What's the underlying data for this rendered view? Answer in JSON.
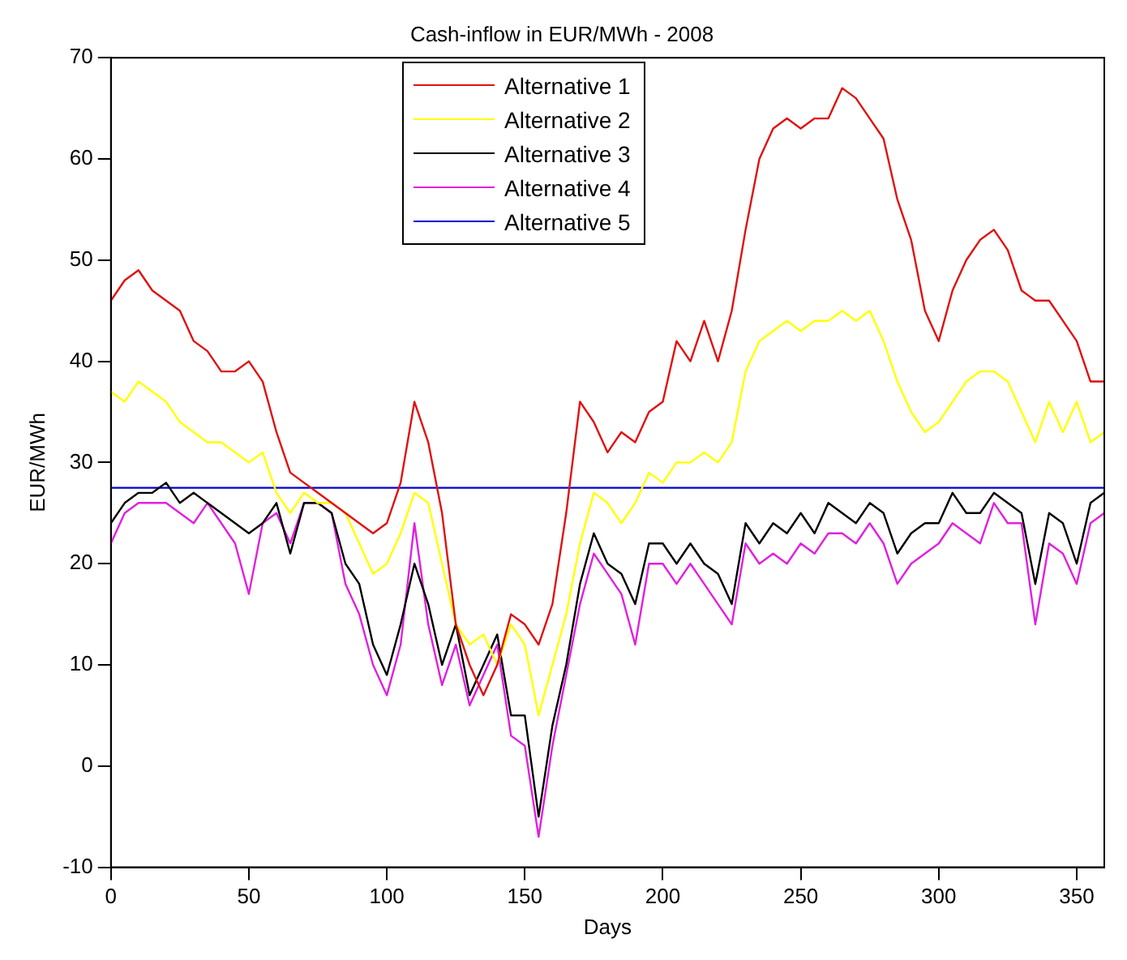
{
  "chart_data": {
    "type": "line",
    "title": "Cash-inflow in EUR/MWh - 2008",
    "xlabel": "Days",
    "ylabel": "EUR/MWh",
    "x": [
      0,
      5,
      10,
      15,
      20,
      25,
      30,
      35,
      40,
      45,
      50,
      55,
      60,
      65,
      70,
      75,
      80,
      85,
      90,
      95,
      100,
      105,
      110,
      115,
      120,
      125,
      130,
      135,
      140,
      145,
      150,
      155,
      160,
      165,
      170,
      175,
      180,
      185,
      190,
      195,
      200,
      205,
      210,
      215,
      220,
      225,
      230,
      235,
      240,
      245,
      250,
      255,
      260,
      265,
      270,
      275,
      280,
      285,
      290,
      295,
      300,
      305,
      310,
      315,
      320,
      325,
      330,
      335,
      340,
      345,
      350,
      355,
      360
    ],
    "xlim": [
      0,
      360
    ],
    "xticks": [
      0,
      50,
      100,
      150,
      200,
      250,
      300,
      350
    ],
    "ylim": [
      -10,
      70
    ],
    "yticks": [
      -10,
      0,
      10,
      20,
      30,
      40,
      50,
      60,
      70
    ],
    "grid": false,
    "legend": "top",
    "marker": "none",
    "line_style": "solid",
    "series": [
      {
        "name": "Alternative 1",
        "color": "#e01010",
        "values": [
          46,
          48,
          49,
          47,
          46,
          45,
          42,
          41,
          39,
          39,
          40,
          38,
          33,
          29,
          28,
          27,
          26,
          25,
          24,
          23,
          24,
          28,
          36,
          32,
          25,
          14,
          10,
          7,
          10,
          15,
          14,
          12,
          16,
          25,
          36,
          34,
          31,
          33,
          32,
          35,
          36,
          42,
          40,
          44,
          40,
          45,
          53,
          60,
          63,
          64,
          63,
          64,
          64,
          67,
          66,
          64,
          62,
          56,
          52,
          45,
          42,
          47,
          50,
          52,
          53,
          51,
          47,
          46,
          46,
          44,
          42,
          38,
          38
        ]
      },
      {
        "name": "Alternative 2",
        "color": "#ffff00",
        "values": [
          37,
          36,
          38,
          37,
          36,
          34,
          33,
          32,
          32,
          31,
          30,
          31,
          27,
          25,
          27,
          26,
          26,
          25,
          22,
          19,
          20,
          23,
          27,
          26,
          20,
          14,
          12,
          13,
          10,
          14,
          12,
          5,
          10,
          15,
          22,
          27,
          26,
          24,
          26,
          29,
          28,
          30,
          30,
          31,
          30,
          32,
          39,
          42,
          43,
          44,
          43,
          44,
          44,
          45,
          44,
          45,
          42,
          38,
          35,
          33,
          34,
          36,
          38,
          39,
          39,
          38,
          35,
          32,
          36,
          33,
          36,
          32,
          33
        ]
      },
      {
        "name": "Alternative 3",
        "color": "#000000",
        "values": [
          24,
          26,
          27,
          27,
          28,
          26,
          27,
          26,
          25,
          24,
          23,
          24,
          26,
          21,
          26,
          26,
          25,
          20,
          18,
          12,
          9,
          14,
          20,
          16,
          10,
          14,
          7,
          10,
          13,
          5,
          5,
          -5,
          4,
          10,
          18,
          23,
          20,
          19,
          16,
          22,
          22,
          20,
          22,
          20,
          19,
          16,
          24,
          22,
          24,
          23,
          25,
          23,
          26,
          25,
          24,
          26,
          25,
          21,
          23,
          24,
          24,
          27,
          25,
          25,
          27,
          26,
          25,
          18,
          25,
          24,
          20,
          26,
          27
        ]
      },
      {
        "name": "Alternative 4",
        "color": "#e020e0",
        "values": [
          22,
          25,
          26,
          26,
          26,
          25,
          24,
          26,
          24,
          22,
          17,
          24,
          25,
          22,
          26,
          26,
          25,
          18,
          15,
          10,
          7,
          12,
          24,
          14,
          8,
          12,
          6,
          9,
          12,
          3,
          2,
          -7,
          2,
          9,
          16,
          21,
          19,
          17,
          12,
          20,
          20,
          18,
          20,
          18,
          16,
          14,
          22,
          20,
          21,
          20,
          22,
          21,
          23,
          23,
          22,
          24,
          22,
          18,
          20,
          21,
          22,
          24,
          23,
          22,
          26,
          24,
          24,
          14,
          22,
          21,
          18,
          24,
          25
        ]
      },
      {
        "name": "Alternative 5",
        "color": "#0000cc",
        "x": [
          0,
          360
        ],
        "values": [
          27.5,
          27.5
        ]
      }
    ]
  }
}
